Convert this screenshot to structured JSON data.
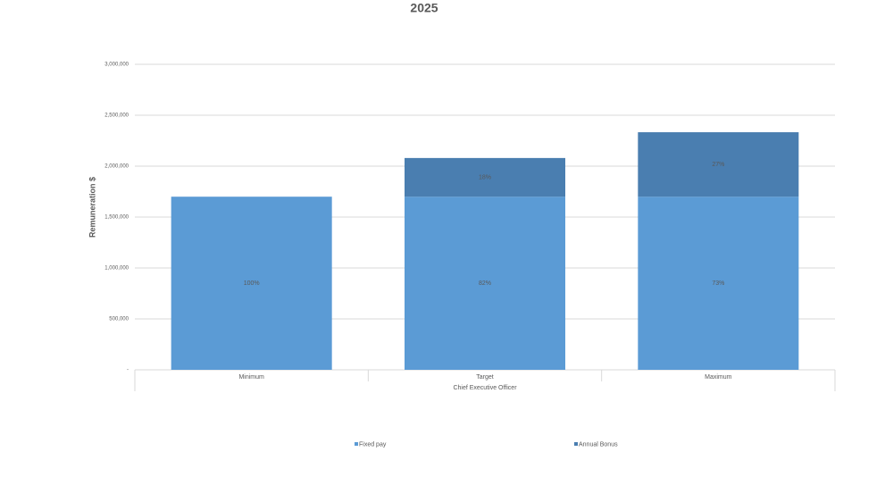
{
  "chart_data": {
    "type": "stacked_bar",
    "title": "2025",
    "y_label": "Remuneration $",
    "group_label": "Chief Executive Officer",
    "categories": [
      "Minimum",
      "Target",
      "Maximum"
    ],
    "series": [
      {
        "name": "Fixed pay",
        "color": "#5b9bd5",
        "values": [
          1700000,
          1700000,
          1700000
        ],
        "labels": [
          "100%",
          "82%",
          "73%"
        ]
      },
      {
        "name": "Annual Bonus",
        "color": "#4a7eb0",
        "values": [
          0,
          380000,
          633000
        ],
        "labels": [
          null,
          "18%",
          "27%"
        ]
      }
    ],
    "ylim": [
      0,
      3000000
    ],
    "yticks": [
      {
        "value": 0,
        "label": "-"
      },
      {
        "value": 500000,
        "label": "500,000"
      },
      {
        "value": 1000000,
        "label": "1,000,000"
      },
      {
        "value": 1500000,
        "label": "1,500,000"
      },
      {
        "value": 2000000,
        "label": "2,000,000"
      },
      {
        "value": 2500000,
        "label": "2,500,000"
      },
      {
        "value": 3000000,
        "label": "3,000,000"
      }
    ],
    "grid": true,
    "legend": "bottom"
  }
}
